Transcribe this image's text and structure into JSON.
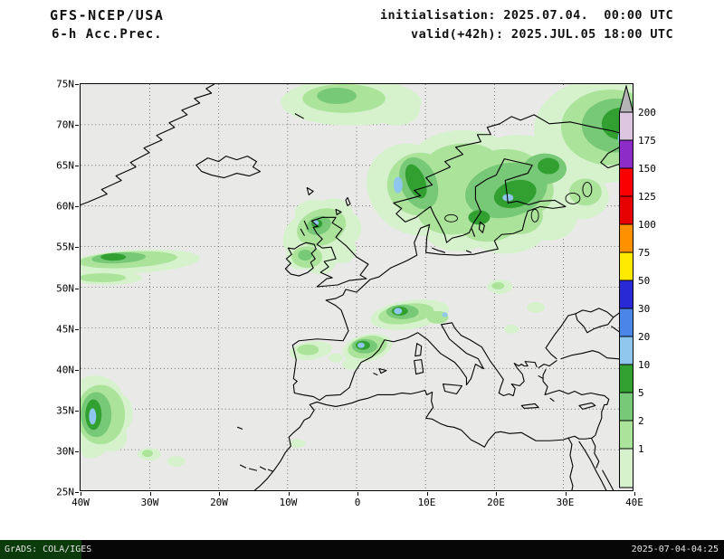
{
  "header": {
    "model": "GFS-NCEP/USA",
    "product": "6-h Acc.Prec.",
    "init": "initialisation: 2025.07.04.  00:00 UTC",
    "valid": "valid(+42h): 2025.JUL.05 18:00 UTC"
  },
  "map": {
    "background": "#e9e9e8",
    "lat_labels": [
      "75N",
      "70N",
      "65N",
      "60N",
      "55N",
      "50N",
      "45N",
      "40N",
      "35N",
      "30N",
      "25N"
    ],
    "lon_labels": [
      "40W",
      "30W",
      "20W",
      "10W",
      "0",
      "10E",
      "20E",
      "30E",
      "40E"
    ]
  },
  "colorbar": {
    "labels": [
      "200",
      "175",
      "150",
      "125",
      "100",
      "75",
      "50",
      "30",
      "20",
      "10",
      "5",
      "2",
      "1"
    ],
    "arrow_color": "#b5b5b5",
    "band_colors": [
      "#dcc6e0",
      "#8e2cc8",
      "#fa0000",
      "#e60000",
      "#ff9000",
      "#ffe900",
      "#2929d6",
      "#4a86e8",
      "#8ec6ee",
      "#31a031",
      "#77c877",
      "#abe39b",
      "#d6f2cc"
    ]
  },
  "footer": {
    "left": "GrADS: COLA/IGES",
    "right": "2025-07-04-04:25"
  }
}
